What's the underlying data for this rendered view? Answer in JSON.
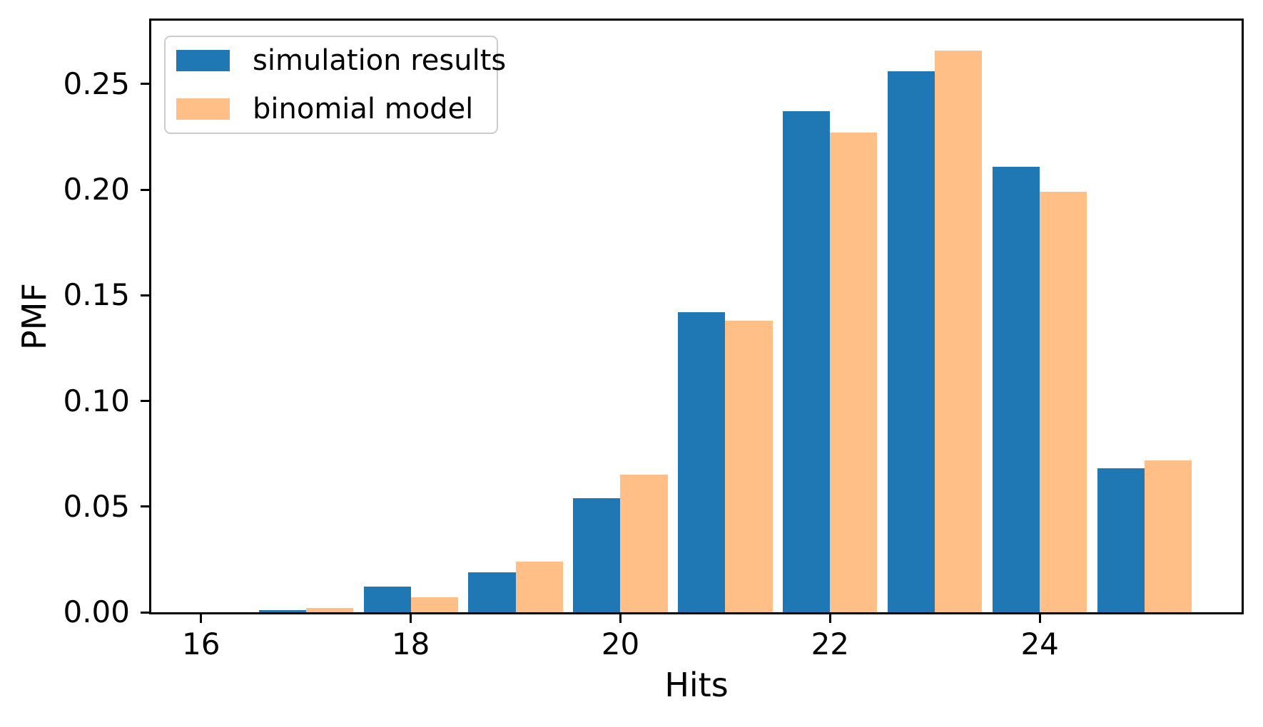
{
  "chart_data": {
    "type": "bar",
    "title": "",
    "xlabel": "Hits",
    "ylabel": "PMF",
    "x": [
      16,
      17,
      18,
      19,
      20,
      21,
      22,
      23,
      24,
      25
    ],
    "series": [
      {
        "name": "simulation results",
        "color": "#1f77b4",
        "values": [
          0.0,
          0.001,
          0.012,
          0.019,
          0.054,
          0.142,
          0.237,
          0.256,
          0.211,
          0.068
        ]
      },
      {
        "name": "binomial model",
        "color": "#ffbf86",
        "values": [
          0.0,
          0.002,
          0.007,
          0.024,
          0.065,
          0.138,
          0.227,
          0.266,
          0.199,
          0.072
        ]
      }
    ],
    "bar_width": 0.45,
    "xticks": [
      16,
      18,
      20,
      22,
      24
    ],
    "ytick_labels": [
      "0.00",
      "0.05",
      "0.10",
      "0.15",
      "0.20",
      "0.25"
    ],
    "ytick_values": [
      0.0,
      0.05,
      0.1,
      0.15,
      0.2,
      0.25
    ],
    "xlim": [
      15.525,
      25.925
    ],
    "ylim": [
      0.0,
      0.28
    ],
    "grid": false,
    "legend_position": "upper left",
    "axis_color": "#000000",
    "legend_border_color": "#cccccc"
  }
}
